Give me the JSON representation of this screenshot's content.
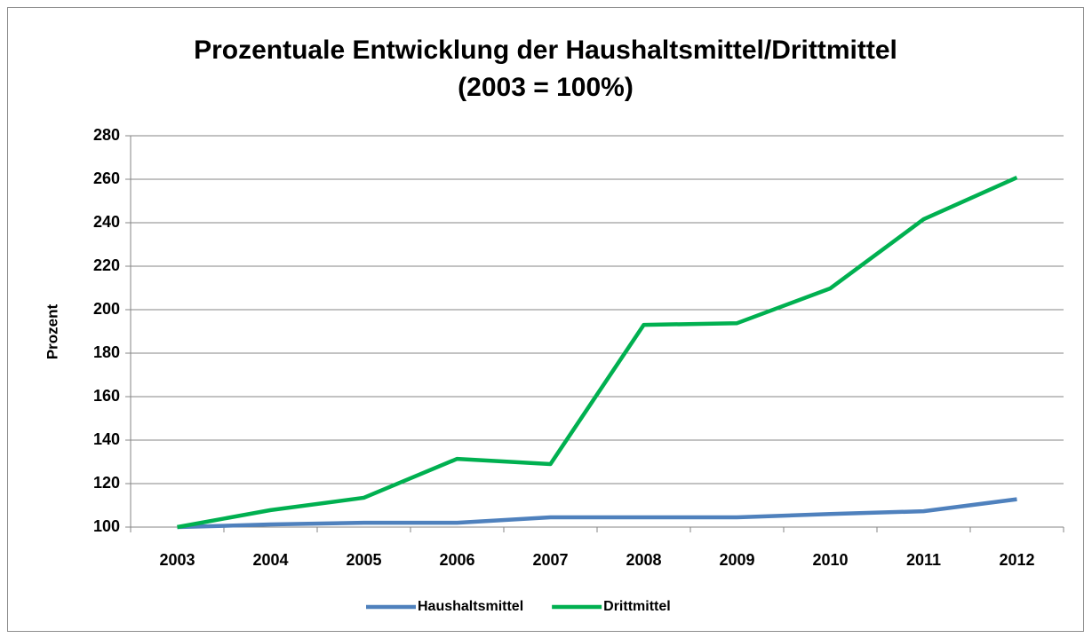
{
  "chart_data": {
    "type": "line",
    "title": "Prozentuale Entwicklung der Haushaltsmittel/Drittmittel",
    "subtitle": "(2003 = 100%)",
    "y_label": "Prozent",
    "categories": [
      "2003",
      "2004",
      "2005",
      "2006",
      "2007",
      "2008",
      "2009",
      "2010",
      "2011",
      "2012"
    ],
    "series": [
      {
        "name": "Haushaltsmittel",
        "color": "#4f81bd",
        "values": [
          100,
          101.2,
          102,
          102,
          104.5,
          104.5,
          104.5,
          106,
          107.3,
          112.8
        ]
      },
      {
        "name": "Drittmittel",
        "color": "#00b050",
        "values": [
          100,
          107.8,
          113.5,
          131.4,
          129,
          193,
          193.8,
          209.8,
          241.6,
          260.8
        ]
      }
    ],
    "ylim": [
      100,
      280
    ],
    "yticks": [
      100,
      120,
      140,
      160,
      180,
      200,
      220,
      240,
      260,
      280
    ],
    "grid": true,
    "legend": "bottom"
  }
}
